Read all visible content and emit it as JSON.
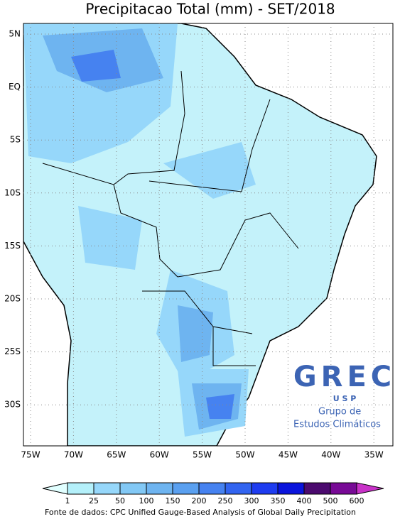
{
  "title": "Precipitacao Total (mm) - SET/2018",
  "latitude_labels": [
    "5N",
    "EQ",
    "5S",
    "10S",
    "15S",
    "20S",
    "25S",
    "30S"
  ],
  "longitude_labels": [
    "75W",
    "70W",
    "65W",
    "60W",
    "55W",
    "50W",
    "45W",
    "40W",
    "35W"
  ],
  "colorbar": {
    "labels": [
      "1",
      "25",
      "50",
      "100",
      "150",
      "200",
      "250",
      "300",
      "350",
      "400",
      "500",
      "600"
    ],
    "colors": [
      "#e1ffff",
      "#b4f0fa",
      "#96d7fa",
      "#82c8f5",
      "#6eb4f0",
      "#5aa0f0",
      "#4682f0",
      "#3264f0",
      "#1e3cf0",
      "#0a14dc",
      "#4b0a6e",
      "#780a96",
      "#c832c8"
    ]
  },
  "logo": {
    "name": "GREC",
    "institution": "U S P",
    "line1": "Grupo de",
    "line2": "Estudos Climáticos"
  },
  "source": "Fonte de dados: CPC Unified Gauge-Based Analysis of Global Daily Precipitation"
}
